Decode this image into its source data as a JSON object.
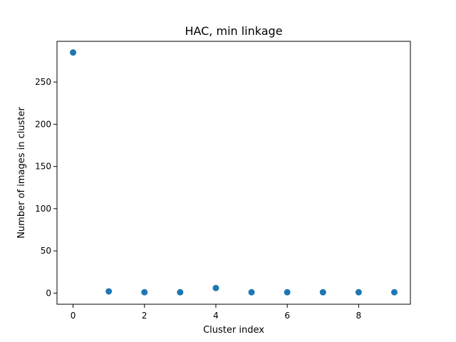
{
  "chart_data": {
    "type": "scatter",
    "title": "HAC, min linkage",
    "xlabel": "Cluster index",
    "ylabel": "Number of images in cluster",
    "x": [
      0,
      1,
      2,
      3,
      4,
      5,
      6,
      7,
      8,
      9
    ],
    "y": [
      285,
      2,
      1,
      1,
      6,
      1,
      1,
      1,
      1,
      1
    ],
    "xlim": [
      -0.45,
      9.45
    ],
    "ylim": [
      -13.2,
      298.2
    ],
    "xticks": [
      0,
      2,
      4,
      6,
      8
    ],
    "yticks": [
      0,
      50,
      100,
      150,
      200,
      250
    ],
    "xtick_labels": [
      "0",
      "2",
      "4",
      "6",
      "8"
    ],
    "ytick_labels": [
      "0",
      "50",
      "100",
      "150",
      "200",
      "250"
    ],
    "grid": false,
    "colors": {
      "marker": "#1f77b4",
      "axis": "#000000",
      "background": "#ffffff"
    }
  }
}
